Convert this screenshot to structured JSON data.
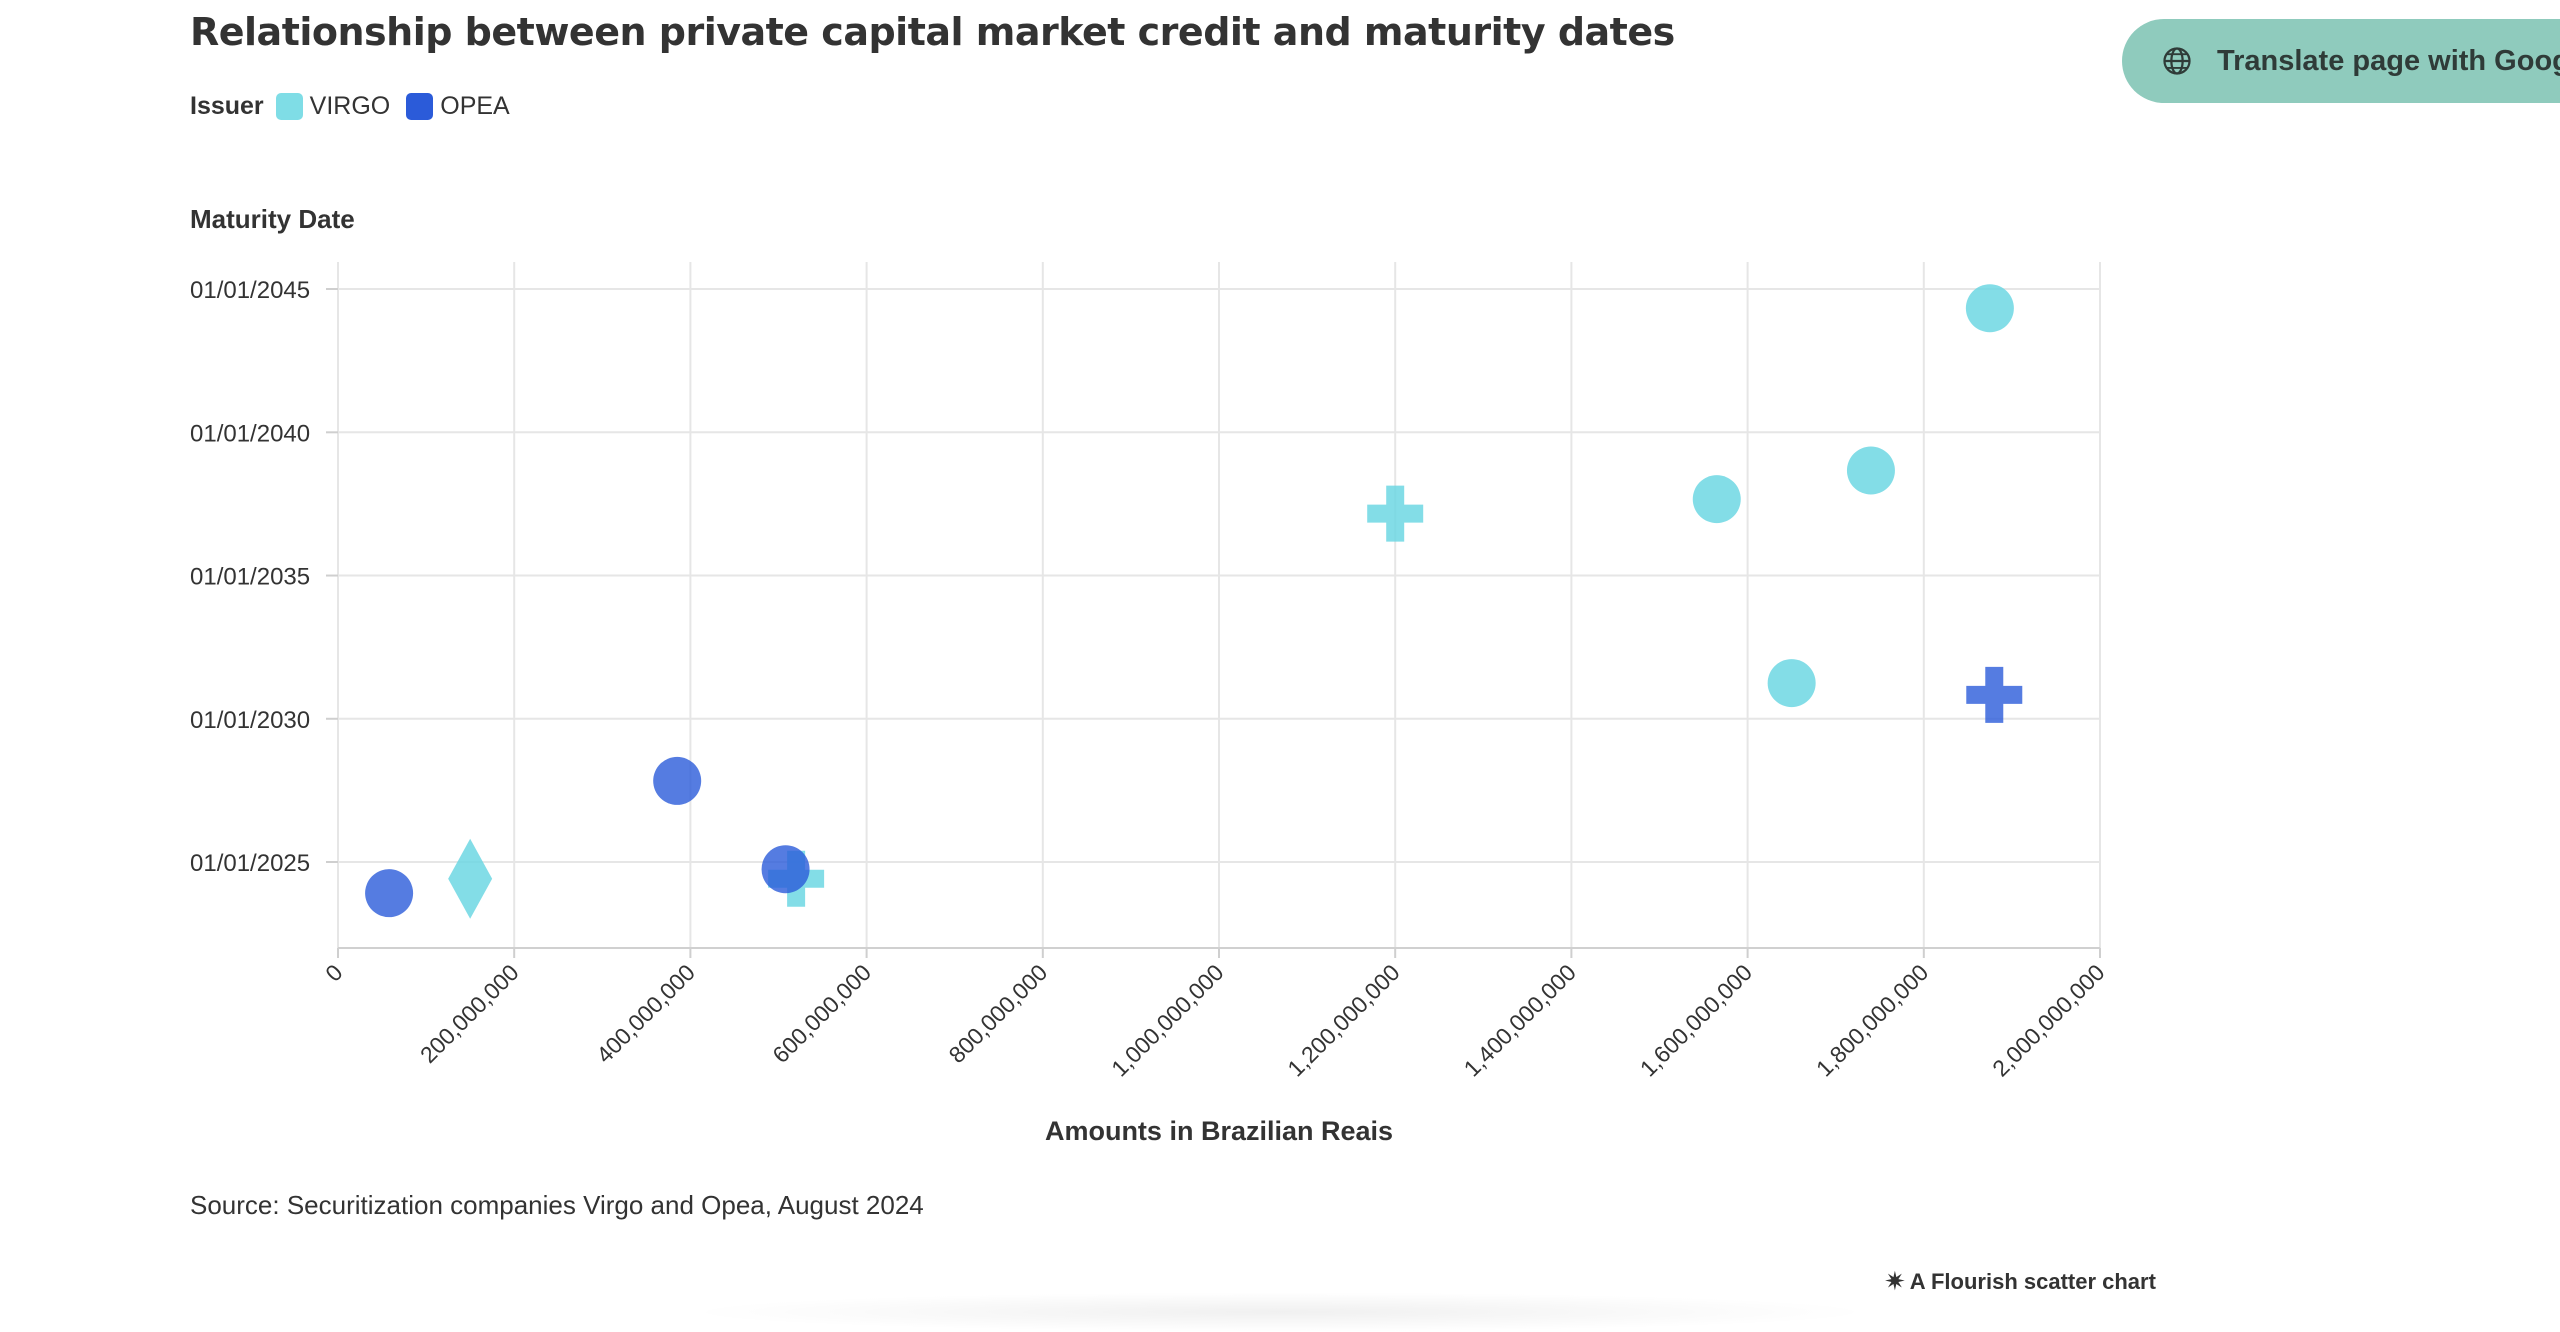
{
  "translate_button": {
    "label": "Translate page with Google",
    "icon": "globe-icon"
  },
  "source": "Source: Securitization companies Virgo and Opea, August 2024",
  "credit": {
    "icon": "flourish-star-icon",
    "label": "A Flourish scatter chart"
  },
  "colors": {
    "VIRGO": "#7fdde6",
    "OPEA": "#4a73e2",
    "grid": "#e6e6e6",
    "text": "#333333"
  },
  "chart_data": {
    "type": "scatter",
    "title": "Relationship between private capital market credit and maturity dates",
    "legend_title": "Issuer",
    "legend_placement": "top-left",
    "legend": [
      "VIRGO",
      "OPEA"
    ],
    "xlabel": "Amounts in Brazilian Reais",
    "ylabel": "Maturity Date",
    "grid": true,
    "xlim": [
      0,
      2000000000
    ],
    "x_ticks": [
      {
        "value": 0,
        "label": "0"
      },
      {
        "value": 200000000,
        "label": "200,000,000"
      },
      {
        "value": 400000000,
        "label": "400,000,000"
      },
      {
        "value": 600000000,
        "label": "600,000,000"
      },
      {
        "value": 800000000,
        "label": "800,000,000"
      },
      {
        "value": 1000000000,
        "label": "1,000,000,000"
      },
      {
        "value": 1200000000,
        "label": "1,200,000,000"
      },
      {
        "value": 1400000000,
        "label": "1,400,000,000"
      },
      {
        "value": 1600000000,
        "label": "1,600,000,000"
      },
      {
        "value": 1800000000,
        "label": "1,800,000,000"
      },
      {
        "value": 2000000000,
        "label": "2,000,000,000"
      }
    ],
    "ylim": [
      "2022-01-01",
      "2046-01-01"
    ],
    "y_ticks": [
      {
        "value": "2025-01-01",
        "label": "01/01/2025"
      },
      {
        "value": "2030-01-01",
        "label": "01/01/2030"
      },
      {
        "value": "2035-01-01",
        "label": "01/01/2035"
      },
      {
        "value": "2040-01-01",
        "label": "01/01/2040"
      },
      {
        "value": "2045-01-01",
        "label": "01/01/2045"
      }
    ],
    "series": [
      {
        "name": "VIRGO",
        "points": [
          {
            "x": 150000000,
            "y": "2024-06-01",
            "shape": "diamond"
          },
          {
            "x": 520000000,
            "y": "2024-06-01",
            "shape": "cross"
          },
          {
            "x": 1200000000,
            "y": "2037-03-01",
            "shape": "cross"
          },
          {
            "x": 1565000000,
            "y": "2037-09-01",
            "shape": "circle"
          },
          {
            "x": 1650000000,
            "y": "2031-04-01",
            "shape": "circle"
          },
          {
            "x": 1740000000,
            "y": "2038-09-01",
            "shape": "circle"
          },
          {
            "x": 1875000000,
            "y": "2044-05-01",
            "shape": "circle"
          }
        ]
      },
      {
        "name": "OPEA",
        "points": [
          {
            "x": 58000000,
            "y": "2023-12-01",
            "shape": "circle"
          },
          {
            "x": 385000000,
            "y": "2027-11-01",
            "shape": "circle"
          },
          {
            "x": 508000000,
            "y": "2024-10-01",
            "shape": "circle"
          },
          {
            "x": 1880000000,
            "y": "2030-11-01",
            "shape": "cross"
          }
        ]
      }
    ]
  }
}
